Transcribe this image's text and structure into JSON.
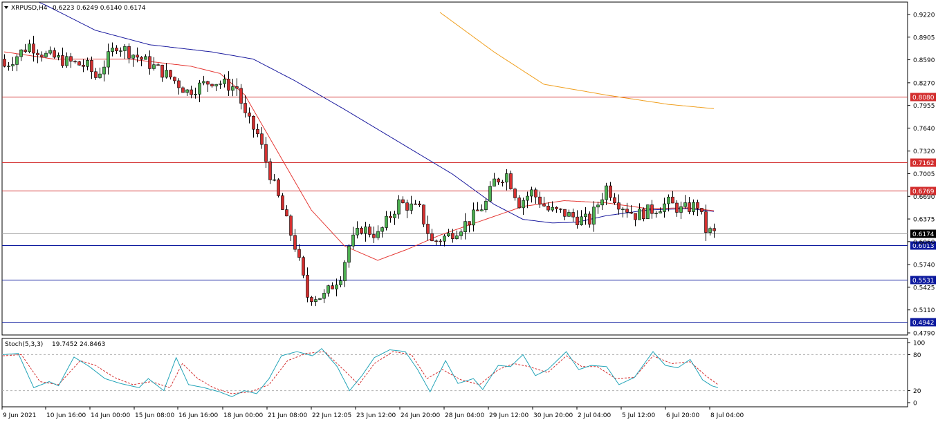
{
  "header": {
    "symbol": "XRPUSD,H4",
    "ohlc": "0.6223 0.6249 0.6140 0.6174"
  },
  "stoch_header": {
    "name": "Stoch(5,3,3)",
    "values": "19.7452 24.8463"
  },
  "colors": {
    "up_candle": "#4caf50",
    "down_candle": "#d32f2f",
    "ma_fast": "#e53935",
    "ma_mid": "#1a1a9e",
    "ma_slow": "#f0a020",
    "resistance": "#d32f2f",
    "support": "#0d1a9e",
    "stoch_main": "#22a4b8",
    "stoch_signal": "#d32f2f"
  },
  "chart_data": {
    "type": "candlestick",
    "ylim": [
      0.479,
      0.922
    ],
    "y_ticks": [
      "0.9220",
      "0.8905",
      "0.8590",
      "0.8270",
      "0.7955",
      "0.7640",
      "0.7320",
      "0.7005",
      "0.6690",
      "0.6375",
      "0.6060",
      "0.5740",
      "0.5425",
      "0.5110",
      "0.4790"
    ],
    "x_ticks": [
      "9 Jun 2021",
      "10 Jun 16:00",
      "14 Jun 00:00",
      "15 Jun 08:00",
      "16 Jun 16:00",
      "18 Jun 00:00",
      "21 Jun 08:00",
      "22 Jun 12:05",
      "23 Jun 12:00",
      "24 Jun 20:00",
      "28 Jun 04:00",
      "29 Jun 12:00",
      "30 Jun 20:00",
      "2 Jul 04:00",
      "5 Jul 12:00",
      "6 Jul 20:00",
      "8 Jul 04:00"
    ],
    "levels": [
      {
        "value": 0.808,
        "label": "0.8080",
        "kind": "resistance"
      },
      {
        "value": 0.7162,
        "label": "0.7162",
        "kind": "resistance"
      },
      {
        "value": 0.6769,
        "label": "0.6769",
        "kind": "resistance"
      },
      {
        "value": 0.6013,
        "label": "0.6013",
        "kind": "support"
      },
      {
        "value": 0.5531,
        "label": "0.5531",
        "kind": "support"
      },
      {
        "value": 0.4942,
        "label": "0.4942",
        "kind": "support"
      }
    ],
    "current_price": {
      "value": 0.6174,
      "label": "0.6174"
    },
    "candle_count": 172,
    "close_keypoints": [
      [
        0,
        0.85
      ],
      [
        6,
        0.88
      ],
      [
        10,
        0.865
      ],
      [
        16,
        0.855
      ],
      [
        20,
        0.85
      ],
      [
        22,
        0.835
      ],
      [
        27,
        0.88
      ],
      [
        33,
        0.86
      ],
      [
        40,
        0.835
      ],
      [
        44,
        0.815
      ],
      [
        50,
        0.83
      ],
      [
        56,
        0.82
      ],
      [
        58,
        0.78
      ],
      [
        61,
        0.755
      ],
      [
        64,
        0.7
      ],
      [
        67,
        0.65
      ],
      [
        70,
        0.6
      ],
      [
        73,
        0.53
      ],
      [
        77,
        0.53
      ],
      [
        81,
        0.56
      ],
      [
        83,
        0.6
      ],
      [
        86,
        0.625
      ],
      [
        90,
        0.615
      ],
      [
        95,
        0.66
      ],
      [
        100,
        0.65
      ],
      [
        103,
        0.605
      ],
      [
        107,
        0.615
      ],
      [
        112,
        0.635
      ],
      [
        116,
        0.66
      ],
      [
        118,
        0.69
      ],
      [
        121,
        0.7
      ],
      [
        124,
        0.66
      ],
      [
        127,
        0.675
      ],
      [
        131,
        0.65
      ],
      [
        135,
        0.645
      ],
      [
        138,
        0.638
      ],
      [
        141,
        0.635
      ],
      [
        145,
        0.682
      ],
      [
        148,
        0.66
      ],
      [
        152,
        0.643
      ],
      [
        156,
        0.65
      ],
      [
        160,
        0.66
      ],
      [
        163,
        0.65
      ],
      [
        167,
        0.657
      ],
      [
        169,
        0.622
      ],
      [
        171,
        0.6174
      ]
    ],
    "ma_fast_keypoints": [
      [
        0,
        0.87
      ],
      [
        12,
        0.86
      ],
      [
        30,
        0.86
      ],
      [
        45,
        0.85
      ],
      [
        52,
        0.84
      ],
      [
        58,
        0.81
      ],
      [
        66,
        0.73
      ],
      [
        74,
        0.65
      ],
      [
        82,
        0.6
      ],
      [
        90,
        0.58
      ],
      [
        97,
        0.595
      ],
      [
        105,
        0.615
      ],
      [
        115,
        0.635
      ],
      [
        125,
        0.655
      ],
      [
        135,
        0.663
      ],
      [
        145,
        0.66
      ],
      [
        155,
        0.652
      ],
      [
        165,
        0.653
      ],
      [
        171,
        0.649
      ]
    ],
    "ma_mid_keypoints": [
      [
        0,
        0.96
      ],
      [
        10,
        0.935
      ],
      [
        22,
        0.9
      ],
      [
        35,
        0.88
      ],
      [
        50,
        0.87
      ],
      [
        60,
        0.86
      ],
      [
        70,
        0.83
      ],
      [
        82,
        0.79
      ],
      [
        95,
        0.745
      ],
      [
        108,
        0.7
      ],
      [
        118,
        0.658
      ],
      [
        125,
        0.637
      ],
      [
        132,
        0.632
      ],
      [
        138,
        0.633
      ],
      [
        145,
        0.642
      ],
      [
        155,
        0.65
      ],
      [
        165,
        0.652
      ],
      [
        171,
        0.648
      ]
    ],
    "ma_slow_keypoints": [
      [
        105,
        0.925
      ],
      [
        118,
        0.87
      ],
      [
        130,
        0.825
      ],
      [
        145,
        0.81
      ],
      [
        160,
        0.797
      ],
      [
        171,
        0.791
      ]
    ],
    "stoch": {
      "ylim": [
        0,
        100
      ],
      "ticks": [
        "100",
        "80",
        "20",
        "0"
      ],
      "levels": [
        80,
        20
      ],
      "main_keypoints": [
        [
          0,
          80
        ],
        [
          5,
          82
        ],
        [
          10,
          25
        ],
        [
          15,
          35
        ],
        [
          18,
          28
        ],
        [
          23,
          76
        ],
        [
          28,
          60
        ],
        [
          33,
          40
        ],
        [
          38,
          32
        ],
        [
          44,
          25
        ],
        [
          47,
          40
        ],
        [
          52,
          20
        ],
        [
          56,
          75
        ],
        [
          60,
          30
        ],
        [
          65,
          25
        ],
        [
          70,
          18
        ],
        [
          74,
          10
        ],
        [
          78,
          20
        ],
        [
          82,
          15
        ],
        [
          86,
          40
        ],
        [
          90,
          78
        ],
        [
          95,
          85
        ],
        [
          100,
          78
        ],
        [
          103,
          90
        ],
        [
          108,
          60
        ],
        [
          112,
          20
        ],
        [
          116,
          45
        ],
        [
          120,
          75
        ],
        [
          125,
          88
        ],
        [
          130,
          85
        ],
        [
          134,
          55
        ],
        [
          138,
          18
        ],
        [
          143,
          70
        ],
        [
          147,
          32
        ],
        [
          152,
          40
        ],
        [
          155,
          22
        ],
        [
          160,
          62
        ],
        [
          164,
          60
        ],
        [
          168,
          80
        ],
        [
          172,
          45
        ],
        [
          176,
          55
        ],
        [
          182,
          85
        ],
        [
          186,
          55
        ],
        [
          190,
          62
        ],
        [
          195,
          60
        ],
        [
          199,
          30
        ],
        [
          204,
          42
        ],
        [
          210,
          85
        ],
        [
          214,
          62
        ],
        [
          218,
          58
        ],
        [
          222,
          72
        ],
        [
          226,
          38
        ],
        [
          229,
          28
        ],
        [
          231,
          25
        ]
      ],
      "signal_keypoints": [
        [
          0,
          78
        ],
        [
          6,
          80
        ],
        [
          12,
          35
        ],
        [
          18,
          30
        ],
        [
          25,
          70
        ],
        [
          30,
          62
        ],
        [
          36,
          42
        ],
        [
          42,
          30
        ],
        [
          48,
          35
        ],
        [
          54,
          25
        ],
        [
          58,
          65
        ],
        [
          63,
          40
        ],
        [
          68,
          25
        ],
        [
          74,
          15
        ],
        [
          80,
          18
        ],
        [
          86,
          30
        ],
        [
          92,
          70
        ],
        [
          98,
          82
        ],
        [
          104,
          85
        ],
        [
          110,
          55
        ],
        [
          115,
          30
        ],
        [
          120,
          65
        ],
        [
          126,
          85
        ],
        [
          132,
          80
        ],
        [
          137,
          40
        ],
        [
          142,
          55
        ],
        [
          148,
          38
        ],
        [
          154,
          30
        ],
        [
          160,
          55
        ],
        [
          165,
          65
        ],
        [
          170,
          60
        ],
        [
          176,
          50
        ],
        [
          182,
          78
        ],
        [
          187,
          60
        ],
        [
          192,
          60
        ],
        [
          198,
          40
        ],
        [
          204,
          42
        ],
        [
          210,
          78
        ],
        [
          216,
          65
        ],
        [
          222,
          68
        ],
        [
          227,
          45
        ],
        [
          231,
          30
        ]
      ]
    }
  }
}
